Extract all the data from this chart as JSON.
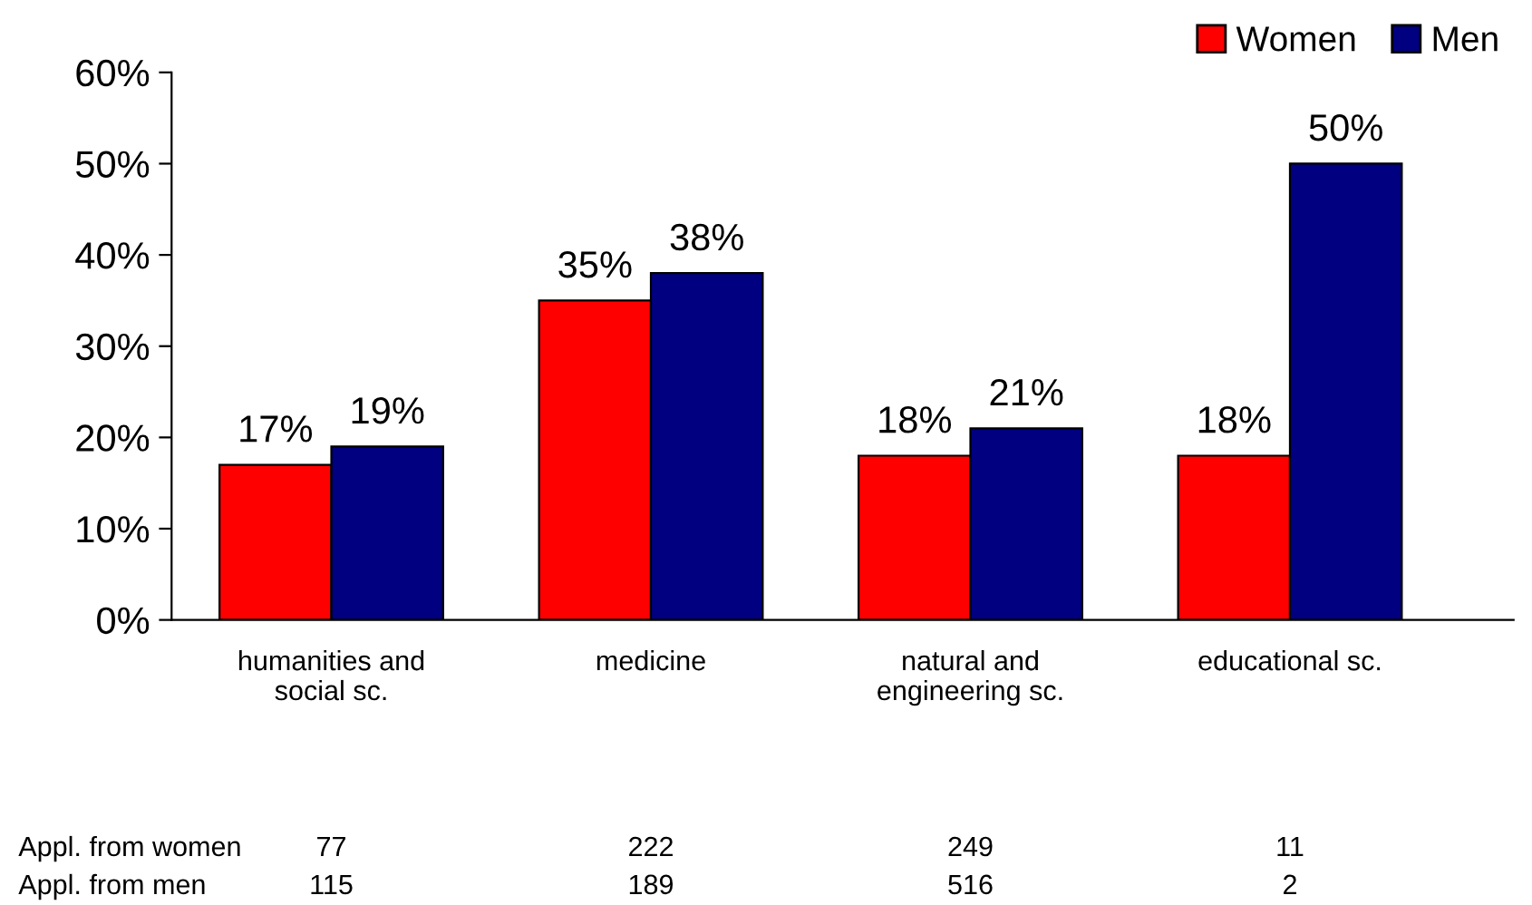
{
  "chart_data": {
    "type": "bar",
    "categories": [
      "humanities and\nsocial sc.",
      "medicine",
      "natural and\nengineering sc.",
      "educational sc."
    ],
    "series": [
      {
        "name": "Women",
        "color": "#ff0000",
        "values": [
          17,
          35,
          18,
          18
        ],
        "value_labels": [
          "17%",
          "35%",
          "18%",
          "18%"
        ]
      },
      {
        "name": "Men",
        "color": "#000080",
        "values": [
          19,
          38,
          21,
          50
        ],
        "value_labels": [
          "19%",
          "38%",
          "21%",
          "50%"
        ]
      }
    ],
    "ylim": [
      0,
      60
    ],
    "yticks": [
      {
        "value": 0,
        "label": "0%"
      },
      {
        "value": 10,
        "label": "10%"
      },
      {
        "value": 20,
        "label": "20%"
      },
      {
        "value": 30,
        "label": "30%"
      },
      {
        "value": 40,
        "label": "40%"
      },
      {
        "value": 50,
        "label": "50%"
      },
      {
        "value": 60,
        "label": "60%"
      }
    ],
    "grid": false,
    "legend": "top right",
    "annotations": [
      "Appl. from women",
      "77",
      "222",
      "249",
      "11",
      "Appl. from men",
      "115",
      "189",
      "516",
      "2"
    ]
  }
}
